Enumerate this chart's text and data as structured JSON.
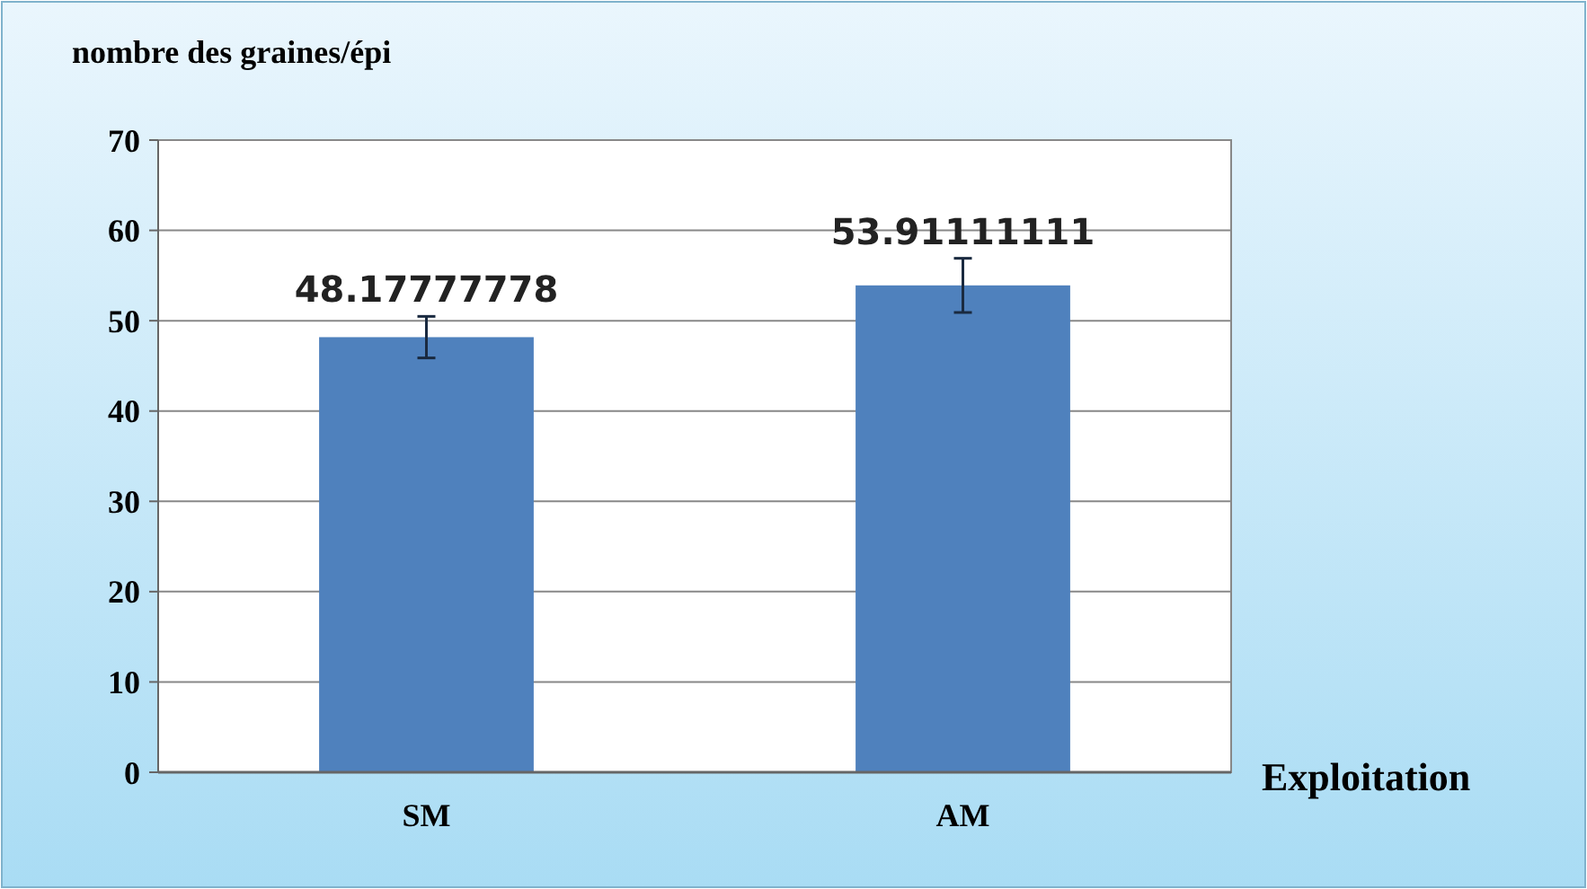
{
  "chart_data": {
    "type": "bar",
    "ylabel": "nombre des graines/épi",
    "xlabel": "Exploitation",
    "categories": [
      "SM",
      "AM"
    ],
    "values": [
      48.17777778,
      53.91111111
    ],
    "color": "#4f81bd",
    "errors": [
      2.3,
      3.0
    ],
    "data_labels": true,
    "grid": "y",
    "ylim": [
      0,
      70
    ],
    "yticks": [
      0,
      10,
      20,
      30,
      40,
      50,
      60,
      70
    ]
  }
}
